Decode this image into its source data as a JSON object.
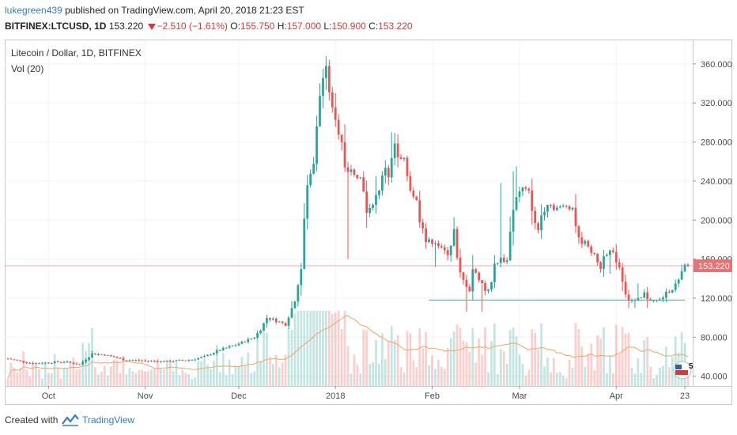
{
  "header": {
    "username": "lukegreen439",
    "published_text": "published on TradingView.com, April 20, 2018 21:23 EST",
    "symbol": "BITFINEX:LTCUSD, 1D",
    "last": "153.220",
    "change": "−2.510 (−1.61%)",
    "o_label": "O:",
    "o_value": "155.750",
    "h_label": "H:",
    "h_value": "157.000",
    "l_label": "L:",
    "l_value": "150.900",
    "c_label": "C:",
    "c_value": "153.220"
  },
  "legend": {
    "series_title": "Litecoin / Dollar, 1D, BITFINEX",
    "volume_title": "Vol (20)"
  },
  "price_label": "153.220",
  "badge_count": "5",
  "footer": {
    "created_with": "Created with",
    "brand": "TradingView"
  },
  "colors": {
    "up": "#26a69a",
    "down": "#ef5350",
    "vol_ma": "#f4a460",
    "support": "#53b987",
    "price_line": "#e57373"
  },
  "chart_data": {
    "type": "candlestick",
    "title": "Litecoin / Dollar, 1D, BITFINEX",
    "y_ticks": [
      "40.000",
      "80.000",
      "120.000",
      "160.000",
      "200.000",
      "240.000",
      "280.000",
      "320.000",
      "360.000"
    ],
    "ylim": [
      30,
      385
    ],
    "x_ticks": [
      {
        "label": "Oct",
        "day": 0
      },
      {
        "label": "Nov",
        "day": 31
      },
      {
        "label": "Dec",
        "day": 61
      },
      {
        "label": "2018",
        "day": 92
      },
      {
        "label": "Feb",
        "day": 123
      },
      {
        "label": "Mar",
        "day": 151
      },
      {
        "label": "Apr",
        "day": 182
      },
      {
        "label": "23",
        "day": 204
      }
    ],
    "start_day": -13,
    "end_day": 205,
    "last_price": 153.22,
    "support_line": {
      "value": 118,
      "from_day": 122,
      "to_day": 204
    },
    "anchors": [
      [
        -13,
        58
      ],
      [
        -5,
        53
      ],
      [
        5,
        55
      ],
      [
        10,
        52
      ],
      [
        14,
        63
      ],
      [
        18,
        62
      ],
      [
        24,
        57
      ],
      [
        30,
        56
      ],
      [
        38,
        55
      ],
      [
        46,
        57
      ],
      [
        50,
        60
      ],
      [
        55,
        67
      ],
      [
        60,
        72
      ],
      [
        66,
        80
      ],
      [
        68,
        88
      ],
      [
        70,
        100
      ],
      [
        73,
        97
      ],
      [
        76,
        93
      ],
      [
        79,
        118
      ],
      [
        81,
        150
      ],
      [
        82,
        200
      ],
      [
        83,
        235
      ],
      [
        85,
        260
      ],
      [
        86,
        300
      ],
      [
        87,
        325
      ],
      [
        88,
        345
      ],
      [
        89,
        355
      ],
      [
        91,
        312
      ],
      [
        92,
        300
      ],
      [
        94,
        282
      ],
      [
        95,
        256
      ],
      [
        96,
        250
      ],
      [
        98,
        250
      ],
      [
        100,
        243
      ],
      [
        101,
        232
      ],
      [
        102,
        206
      ],
      [
        103,
        210
      ],
      [
        104,
        218
      ],
      [
        106,
        232
      ],
      [
        108,
        255
      ],
      [
        109,
        245
      ],
      [
        111,
        278
      ],
      [
        112,
        262
      ],
      [
        114,
        260
      ],
      [
        116,
        232
      ],
      [
        118,
        219
      ],
      [
        119,
        200
      ],
      [
        120,
        194
      ],
      [
        121,
        178
      ],
      [
        122,
        178
      ],
      [
        124,
        178
      ],
      [
        126,
        170
      ],
      [
        127,
        168
      ],
      [
        128,
        166
      ],
      [
        129,
        175
      ],
      [
        130,
        190
      ],
      [
        131,
        160
      ],
      [
        132,
        145
      ],
      [
        133,
        138
      ],
      [
        135,
        128
      ],
      [
        136,
        150
      ],
      [
        137,
        145
      ],
      [
        139,
        135
      ],
      [
        140,
        128
      ],
      [
        141,
        130
      ],
      [
        142,
        135
      ],
      [
        143,
        155
      ],
      [
        145,
        160
      ],
      [
        147,
        158
      ],
      [
        148,
        190
      ],
      [
        149,
        210
      ],
      [
        150,
        225
      ],
      [
        152,
        232
      ],
      [
        154,
        228
      ],
      [
        155,
        212
      ],
      [
        156,
        195
      ],
      [
        157,
        190
      ],
      [
        158,
        205
      ],
      [
        160,
        218
      ],
      [
        162,
        213
      ],
      [
        164,
        212
      ],
      [
        166,
        215
      ],
      [
        168,
        213
      ],
      [
        169,
        195
      ],
      [
        170,
        180
      ],
      [
        171,
        178
      ],
      [
        173,
        175
      ],
      [
        174,
        168
      ],
      [
        176,
        158
      ],
      [
        177,
        150
      ],
      [
        178,
        165
      ],
      [
        180,
        168
      ],
      [
        181,
        165
      ],
      [
        183,
        152
      ],
      [
        184,
        138
      ],
      [
        185,
        125
      ],
      [
        186,
        118
      ],
      [
        188,
        117
      ],
      [
        190,
        120
      ],
      [
        191,
        125
      ],
      [
        192,
        120
      ],
      [
        194,
        117
      ],
      [
        196,
        118
      ],
      [
        198,
        125
      ],
      [
        200,
        130
      ],
      [
        202,
        138
      ],
      [
        204,
        153.22
      ]
    ],
    "spikes": [
      [
        89,
        368
      ],
      [
        88,
        355
      ],
      [
        87,
        340
      ],
      [
        92,
        330
      ],
      [
        105,
        245
      ],
      [
        110,
        290
      ],
      [
        116,
        250
      ],
      [
        145,
        238
      ],
      [
        149,
        250
      ],
      [
        150,
        255
      ],
      [
        173,
        180
      ],
      [
        189,
        135
      ]
    ],
    "dips": [
      [
        82,
        160
      ],
      [
        96,
        160
      ],
      [
        124,
        152
      ],
      [
        134,
        106
      ],
      [
        139,
        106
      ],
      [
        180,
        145
      ],
      [
        186,
        110
      ],
      [
        188,
        110
      ],
      [
        192,
        110
      ]
    ]
  }
}
